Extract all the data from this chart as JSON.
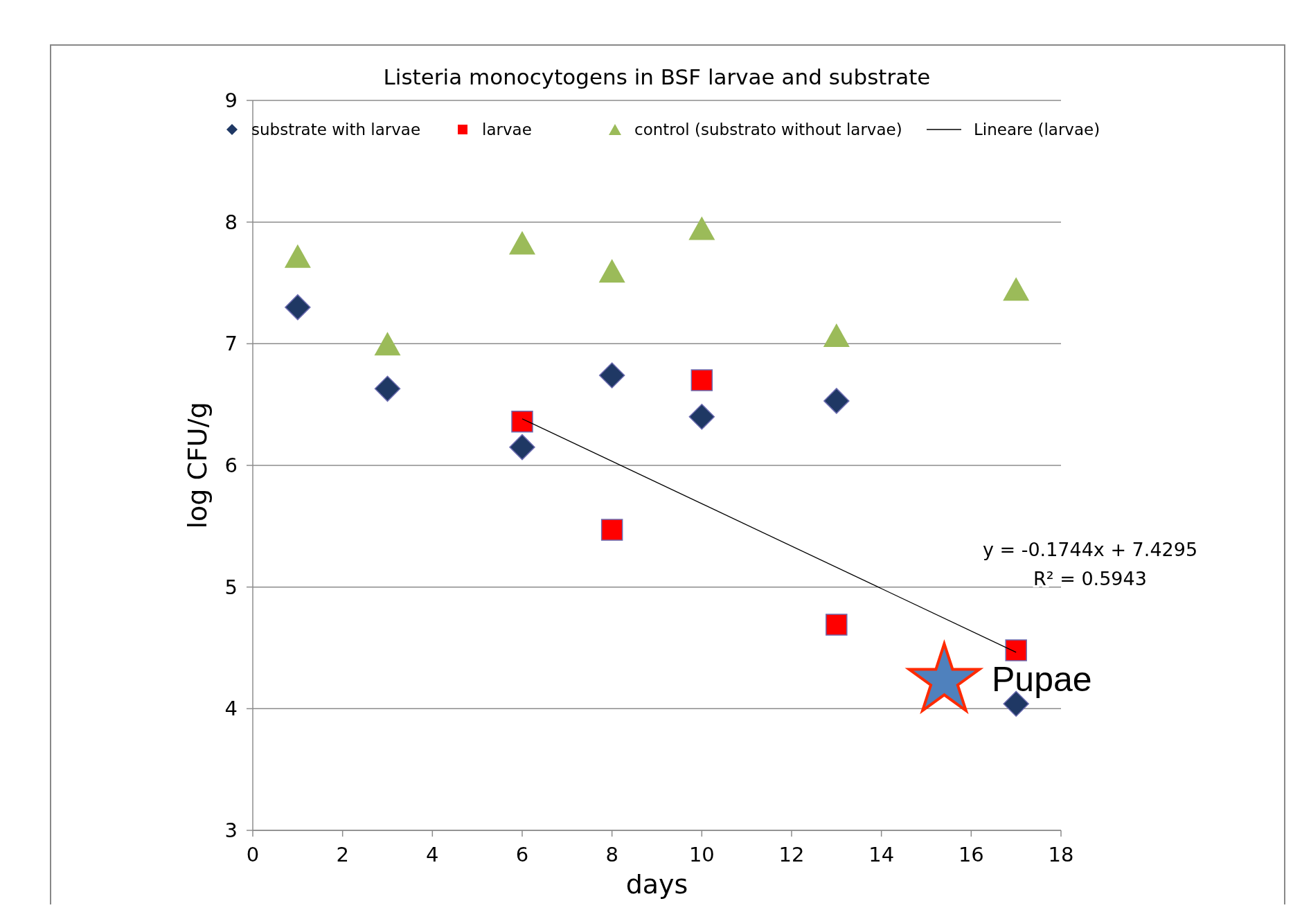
{
  "chart_data": {
    "type": "scatter",
    "title": "Listeria monocytogens  in BSF larvae and substrate",
    "xlabel": "days",
    "ylabel": "log CFU/g",
    "xlim": [
      0,
      18
    ],
    "xticks": [
      0,
      2,
      4,
      6,
      8,
      10,
      12,
      14,
      16,
      18
    ],
    "ylim": [
      3,
      9
    ],
    "yticks": [
      3,
      4,
      5,
      6,
      7,
      8,
      9
    ],
    "grid": "y",
    "legend": "top",
    "series": [
      {
        "name": "substrate with larvae",
        "color": "#1f3864",
        "marker": "diamond",
        "x": [
          1,
          3,
          6,
          8,
          10,
          13,
          17
        ],
        "values": [
          7.3,
          6.63,
          6.15,
          6.74,
          6.4,
          6.53,
          4.04
        ]
      },
      {
        "name": "larvae",
        "color": "#ff0000",
        "marker": "square",
        "x": [
          6,
          8,
          10,
          13,
          17
        ],
        "values": [
          6.36,
          5.47,
          6.7,
          4.69,
          4.48
        ]
      },
      {
        "name": "control (substrato without larvae)",
        "color": "#9bbb59",
        "marker": "triangle",
        "x": [
          1,
          3,
          6,
          8,
          10,
          13,
          17
        ],
        "values": [
          7.72,
          7.0,
          7.83,
          7.6,
          7.95,
          7.07,
          7.45
        ]
      },
      {
        "name": "Lineare (larvae)",
        "type": "line",
        "color": "#000000",
        "marker": "none",
        "x": [
          6,
          17
        ],
        "values": [
          6.383,
          4.464
        ]
      },
      {
        "color": "#4f81bd",
        "marker": "star",
        "x": [
          15.4
        ],
        "values": [
          4.23
        ]
      }
    ],
    "annotations": [
      "y = -0.1744x + 7.4295",
      "R² = 0.5943",
      "Pupae"
    ]
  }
}
